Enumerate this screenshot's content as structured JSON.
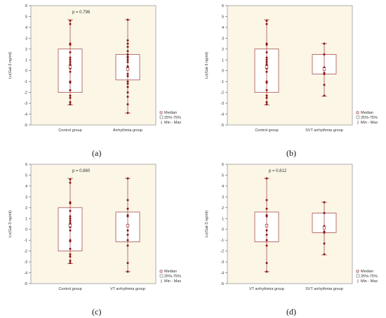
{
  "ylabel": "Ln(Gal-3 ng/ml)",
  "legend": {
    "median": "Median",
    "iqr": "25%-75%",
    "range": "Min - Max"
  },
  "captions": [
    "(a)",
    "(b)",
    "(c)",
    "(d)"
  ],
  "chart_data": [
    {
      "type": "box",
      "title": "p = 0.796",
      "ylabel": "Ln(Gal-3 ng/ml)",
      "ylim": [
        -5,
        6
      ],
      "yticks": [
        -5,
        -4,
        -3,
        -2,
        -1,
        0,
        1,
        2,
        3,
        4,
        5,
        6
      ],
      "categories": [
        "Control group",
        "Arrhythmia group"
      ],
      "series": [
        {
          "median": 0.35,
          "q1": -2.0,
          "q3": 2.0,
          "min": -3.15,
          "max": 4.7,
          "points": [
            4.6,
            4.3,
            2.5,
            2.4,
            1.7,
            1.2,
            1.0,
            0.8,
            0.6,
            0.5,
            0.4,
            0.2,
            -0.1,
            -1.0,
            -1.1,
            -1.8,
            -2.3,
            -2.5,
            -2.9,
            -3.1
          ]
        },
        {
          "median": 0.15,
          "q1": -0.85,
          "q3": 1.5,
          "min": -3.9,
          "max": 4.7,
          "points": [
            4.7,
            2.8,
            2.5,
            2.2,
            1.8,
            1.5,
            1.3,
            1.2,
            1.0,
            0.8,
            0.4,
            0.3,
            0.1,
            -0.3,
            -0.5,
            -1.0,
            -1.2,
            -1.5,
            -2.0,
            -2.4,
            -3.1,
            -3.9
          ]
        }
      ]
    },
    {
      "type": "box",
      "title": "",
      "ylabel": "Ln(Gal-3 ng/ml)",
      "ylim": [
        -5,
        6
      ],
      "yticks": [
        -5,
        -4,
        -3,
        -2,
        -1,
        0,
        1,
        2,
        3,
        4,
        5,
        6
      ],
      "categories": [
        "Control group",
        "SVT arrhythmia group"
      ],
      "series": [
        {
          "median": 0.35,
          "q1": -2.0,
          "q3": 2.0,
          "min": -3.15,
          "max": 4.7,
          "points": [
            4.6,
            4.3,
            2.5,
            2.4,
            1.7,
            1.2,
            1.0,
            0.8,
            0.6,
            0.5,
            0.4,
            0.2,
            -0.1,
            -1.0,
            -1.1,
            -1.8,
            -2.3,
            -2.5,
            -2.9,
            -3.1
          ]
        },
        {
          "median": 0.15,
          "q1": -0.3,
          "q3": 1.5,
          "min": -2.35,
          "max": 2.5,
          "points": [
            2.5,
            1.5,
            0.3,
            0.1,
            -0.2,
            -0.3,
            -1.3,
            -2.3
          ]
        }
      ]
    },
    {
      "type": "box",
      "title": "p = 0.860",
      "ylabel": "Ln(Gal-3 ng/ml)",
      "ylim": [
        -5,
        6
      ],
      "yticks": [
        -5,
        -4,
        -3,
        -2,
        -1,
        0,
        1,
        2,
        3,
        4,
        5,
        6
      ],
      "categories": [
        "Control group",
        "VT arrhythmia group"
      ],
      "series": [
        {
          "median": 0.35,
          "q1": -2.0,
          "q3": 2.0,
          "min": -3.15,
          "max": 4.7,
          "points": [
            4.6,
            4.3,
            2.5,
            2.4,
            1.7,
            1.2,
            1.0,
            0.8,
            0.6,
            0.5,
            0.4,
            0.2,
            -0.1,
            -1.0,
            -1.1,
            -1.8,
            -2.3,
            -2.5,
            -2.9,
            -3.1
          ]
        },
        {
          "median": 0.35,
          "q1": -1.15,
          "q3": 1.6,
          "min": -3.9,
          "max": 4.7,
          "points": [
            4.7,
            2.7,
            1.9,
            1.3,
            1.2,
            0.4,
            0.3,
            -0.1,
            -0.5,
            -1.0,
            -1.5,
            -3.1,
            -3.9
          ]
        }
      ]
    },
    {
      "type": "box",
      "title": "p = 0.812",
      "ylabel": "Ln(Gal-3 ng/ml)",
      "ylim": [
        -5,
        6
      ],
      "yticks": [
        -5,
        -4,
        -3,
        -2,
        -1,
        0,
        1,
        2,
        3,
        4,
        5,
        6
      ],
      "categories": [
        "VT arrhythmia group",
        "SVT arrhythmia group"
      ],
      "series": [
        {
          "median": 0.35,
          "q1": -1.15,
          "q3": 1.6,
          "min": -3.9,
          "max": 4.7,
          "points": [
            4.7,
            2.7,
            1.9,
            1.3,
            1.2,
            0.4,
            0.3,
            -0.1,
            -0.5,
            -1.0,
            -1.5,
            -3.1,
            -3.9
          ]
        },
        {
          "median": 0.15,
          "q1": -0.3,
          "q3": 1.5,
          "min": -2.35,
          "max": 2.5,
          "points": [
            2.5,
            1.5,
            0.3,
            0.1,
            -0.2,
            -0.3,
            -1.3,
            -2.3
          ]
        }
      ]
    }
  ]
}
